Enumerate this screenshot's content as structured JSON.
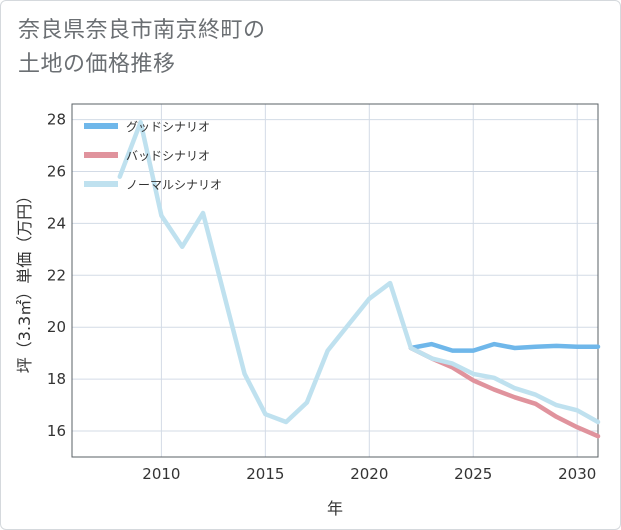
{
  "title_line1": "奈良県奈良市南京終町の",
  "title_line2": "土地の価格推移",
  "chart_data": {
    "type": "line",
    "xlabel": "年",
    "ylabel": "坪（3.3㎡）単価（万円）",
    "xlim": [
      2005.7,
      2031
    ],
    "ylim": [
      15,
      28.6
    ],
    "xticks": [
      2010,
      2015,
      2020,
      2025,
      2030
    ],
    "yticks": [
      16,
      18,
      20,
      22,
      24,
      26,
      28
    ],
    "legend_position": "top-left",
    "series": [
      {
        "name": "グッドシナリオ",
        "color": "#6fb7ea",
        "x": [
          2022,
          2023,
          2024,
          2025,
          2026,
          2027,
          2028,
          2029,
          2030,
          2031
        ],
        "y": [
          19.2,
          19.35,
          19.1,
          19.1,
          19.35,
          19.2,
          19.25,
          19.28,
          19.25,
          19.25
        ]
      },
      {
        "name": "バッドシナリオ",
        "color": "#e0939d",
        "x": [
          2022,
          2023,
          2024,
          2025,
          2026,
          2027,
          2028,
          2029,
          2030,
          2031
        ],
        "y": [
          19.2,
          18.8,
          18.45,
          17.95,
          17.6,
          17.3,
          17.05,
          16.55,
          16.15,
          15.8
        ]
      },
      {
        "name": "ノーマルシナリオ",
        "color": "#bfe1ef",
        "x": [
          2008,
          2009,
          2010,
          2011,
          2012,
          2013,
          2014,
          2015,
          2016,
          2017,
          2018,
          2019,
          2020,
          2021,
          2022,
          2023,
          2024,
          2025,
          2026,
          2027,
          2028,
          2029,
          2030,
          2031
        ],
        "y": [
          25.8,
          27.9,
          24.3,
          23.1,
          24.4,
          21.3,
          18.2,
          16.65,
          16.35,
          17.1,
          19.1,
          20.1,
          21.1,
          21.7,
          19.2,
          18.8,
          18.6,
          18.2,
          18.05,
          17.65,
          17.4,
          17.0,
          16.8,
          16.35
        ]
      }
    ]
  }
}
